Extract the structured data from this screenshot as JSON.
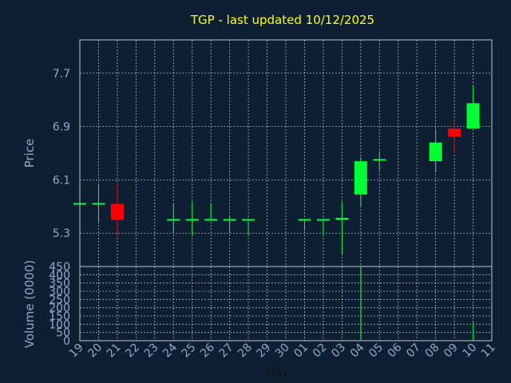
{
  "title": "TGP - last updated 10/12/2025",
  "colors": {
    "background": "#0f1f33",
    "axis": "#b8c4d2",
    "grid": "#c8d0da",
    "title": "#ffff00",
    "label": "#8fa9c9",
    "up": "#00ff33",
    "down": "#ff0000",
    "volume_up": "#00cc22",
    "volume_down": "#cc0000"
  },
  "chart_data": [
    {
      "type": "candlestick",
      "name": "price-panel",
      "ylabel": "Price",
      "ylim": [
        4.8,
        8.2
      ],
      "yticks": [
        "5.3",
        "6.1",
        "6.9",
        "7.7"
      ],
      "grid": true,
      "candles": [
        {
          "day": "19",
          "open": 5.74,
          "high": 5.74,
          "low": 5.74,
          "close": 5.74
        },
        {
          "day": "20",
          "open": 5.74,
          "high": 6.04,
          "low": 5.46,
          "close": 5.74
        },
        {
          "day": "21",
          "open": 5.74,
          "high": 6.04,
          "low": 5.26,
          "close": 5.5
        },
        {
          "day": "24",
          "open": 5.5,
          "high": 5.74,
          "low": 5.3,
          "close": 5.5
        },
        {
          "day": "25",
          "open": 5.5,
          "high": 5.77,
          "low": 5.26,
          "close": 5.5
        },
        {
          "day": "26",
          "open": 5.5,
          "high": 5.74,
          "low": 5.5,
          "close": 5.5
        },
        {
          "day": "27",
          "open": 5.5,
          "high": 5.57,
          "low": 5.3,
          "close": 5.5
        },
        {
          "day": "28",
          "open": 5.5,
          "high": 5.5,
          "low": 5.26,
          "close": 5.5
        },
        {
          "day": "01",
          "open": 5.5,
          "high": 5.5,
          "low": 5.34,
          "close": 5.5
        },
        {
          "day": "02",
          "open": 5.5,
          "high": 5.5,
          "low": 5.26,
          "close": 5.5
        },
        {
          "day": "03",
          "open": 5.5,
          "high": 5.77,
          "low": 4.99,
          "close": 5.53
        },
        {
          "day": "04",
          "open": 5.88,
          "high": 6.44,
          "low": 5.7,
          "close": 6.38
        },
        {
          "day": "05",
          "open": 6.38,
          "high": 6.53,
          "low": 6.24,
          "close": 6.4
        },
        {
          "day": "08",
          "open": 6.38,
          "high": 6.87,
          "low": 6.21,
          "close": 6.66
        },
        {
          "day": "09",
          "open": 6.87,
          "high": 6.99,
          "low": 6.5,
          "close": 6.75
        },
        {
          "day": "10",
          "open": 6.87,
          "high": 7.51,
          "low": 6.87,
          "close": 7.25
        }
      ]
    },
    {
      "type": "bar",
      "name": "volume-panel",
      "ylabel": "Volume (0000)",
      "ylim": [
        0,
        450
      ],
      "yticks": [
        "0",
        "50",
        "100",
        "150",
        "200",
        "250",
        "300",
        "350",
        "400",
        "450"
      ],
      "grid": true,
      "bars": [
        {
          "day": "20",
          "value": 8,
          "direction": "up"
        },
        {
          "day": "21",
          "value": 6,
          "direction": "down"
        },
        {
          "day": "03",
          "value": 5,
          "direction": "up"
        },
        {
          "day": "04",
          "value": 450,
          "direction": "up"
        },
        {
          "day": "05",
          "value": 4,
          "direction": "up"
        },
        {
          "day": "08",
          "value": 6,
          "direction": "up"
        },
        {
          "day": "09",
          "value": 6,
          "direction": "down"
        },
        {
          "day": "10",
          "value": 110,
          "direction": "up"
        }
      ]
    }
  ],
  "x_axis": {
    "label": "Day",
    "ticks": [
      "19",
      "20",
      "21",
      "22",
      "23",
      "24",
      "25",
      "26",
      "27",
      "28",
      "29",
      "30",
      "01",
      "02",
      "03",
      "04",
      "05",
      "06",
      "07",
      "08",
      "09",
      "10",
      "11"
    ]
  }
}
